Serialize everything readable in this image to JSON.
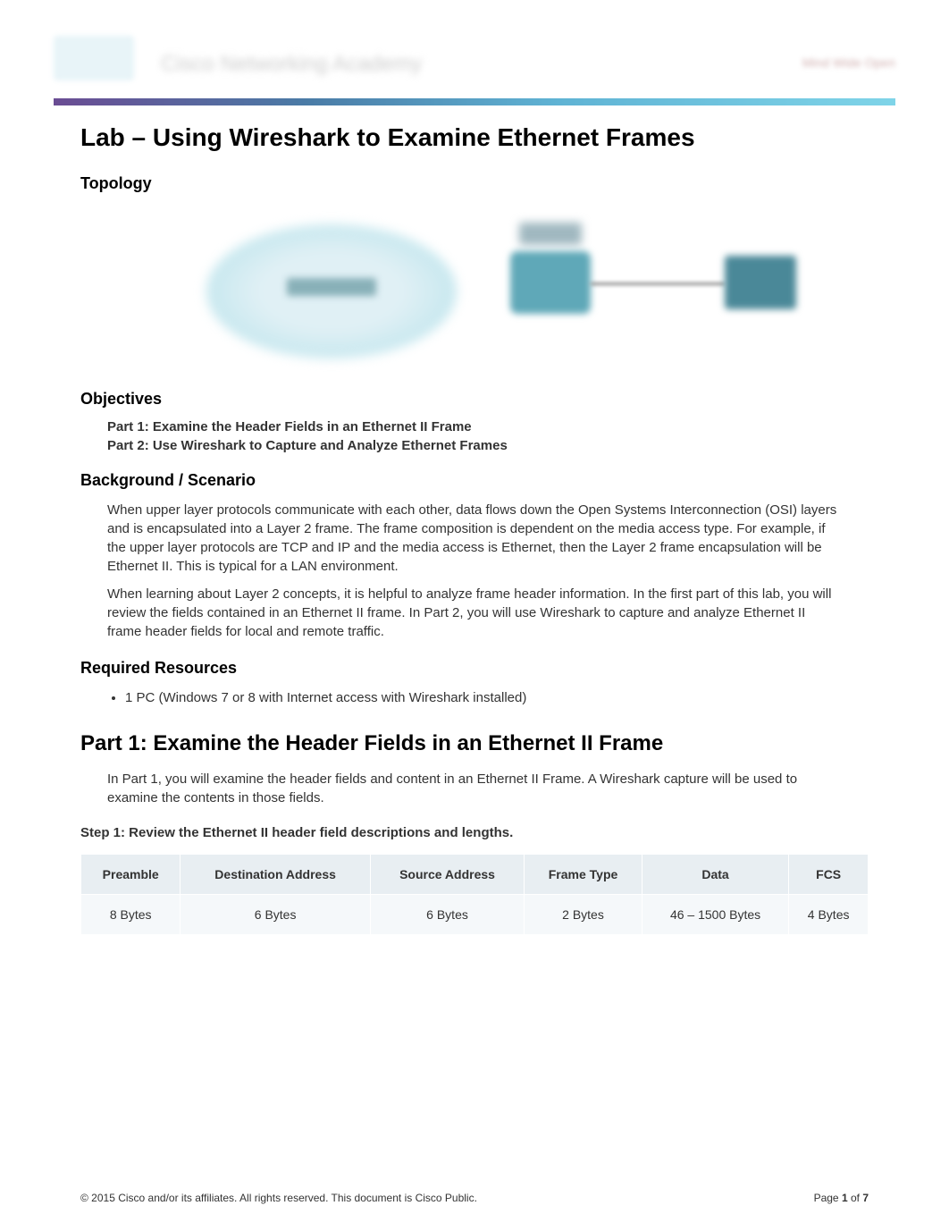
{
  "header": {
    "academy_text": "Cisco Networking Academy",
    "right_text": "Mind Wide Open"
  },
  "title": "Lab – Using Wireshark to Examine Ethernet Frames",
  "sections": {
    "topology": "Topology",
    "objectives": "Objectives",
    "objectives_items": [
      "Part 1: Examine the Header Fields in an Ethernet II Frame",
      "Part 2: Use Wireshark to Capture and Analyze Ethernet Frames"
    ],
    "background": "Background / Scenario",
    "background_p1": "When upper layer protocols communicate with each other, data flows down the Open Systems Interconnection (OSI) layers and is encapsulated into a Layer 2 frame. The frame composition is dependent on the media access type. For example, if the upper layer protocols are TCP and IP and the media access is Ethernet, then the Layer 2 frame encapsulation will be Ethernet II. This is typical for a LAN environment.",
    "background_p2": "When learning about Layer 2 concepts, it is helpful to analyze frame header information. In the first part of this lab, you will review the fields contained in an Ethernet II frame. In Part 2, you will use Wireshark to capture and analyze Ethernet II frame header fields for local and remote traffic.",
    "required": "Required Resources",
    "required_items": [
      "1 PC (Windows 7 or 8 with Internet access with Wireshark installed)"
    ],
    "part1_title": "Part 1:   Examine the Header Fields in an Ethernet II Frame",
    "part1_intro": "In Part 1, you will examine the header fields and content in an Ethernet II Frame. A Wireshark capture will be used to examine the contents in those fields.",
    "step1_title": "Step 1:   Review the Ethernet II header field descriptions and lengths."
  },
  "frame_table": {
    "type": "table",
    "header_bg": "#e8eef2",
    "row_bg": "#f5f8fa",
    "columns": [
      "Preamble",
      "Destination Address",
      "Source Address",
      "Frame Type",
      "Data",
      "FCS"
    ],
    "rows": [
      [
        "8 Bytes",
        "6 Bytes",
        "6 Bytes",
        "2 Bytes",
        "46 – 1500 Bytes",
        "4 Bytes"
      ]
    ]
  },
  "footer": {
    "copyright": "© 2015 Cisco and/or its affiliates. All rights reserved. This document is Cisco Public.",
    "page_label_prefix": "Page ",
    "page_current": "1",
    "page_of": " of ",
    "page_total": "7"
  },
  "colors": {
    "gradient_start": "#6a4c93",
    "gradient_end": "#7fd4e8",
    "text": "#333333",
    "table_header_bg": "#e8eef2",
    "table_cell_bg": "#f5f8fa"
  }
}
